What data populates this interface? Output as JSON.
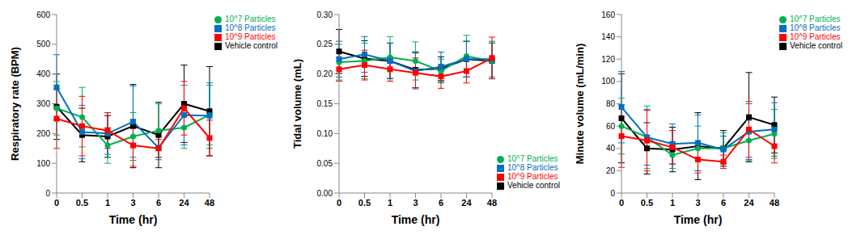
{
  "chart_data": [
    {
      "type": "line",
      "y_label": "Respiratory rate (BPM)",
      "x_label": "Time (hr)",
      "categories": [
        "0",
        "0.5",
        "1",
        "3",
        "6",
        "24",
        "48"
      ],
      "ylim": [
        0,
        600
      ],
      "yticks": [
        0,
        100,
        200,
        300,
        400,
        500,
        600
      ],
      "grid": false,
      "legend": "upper right",
      "series": [
        {
          "name": "Vehicle control",
          "color": "#000000",
          "marker": "square",
          "values": [
            290,
            195,
            190,
            225,
            195,
            300,
            275
          ],
          "errors": [
            110,
            90,
            70,
            140,
            110,
            130,
            150
          ]
        },
        {
          "name": "10^7 Particles",
          "color": "#00b050",
          "marker": "circle",
          "values": [
            285,
            255,
            160,
            190,
            210,
            220,
            262
          ],
          "errors": [
            90,
            100,
            60,
            80,
            90,
            70,
            100
          ]
        },
        {
          "name": "10^8 Particles",
          "color": "#0070c0",
          "marker": "square",
          "values": [
            355,
            205,
            200,
            240,
            152,
            262,
            260
          ],
          "errors": [
            110,
            90,
            70,
            120,
            40,
            100,
            110
          ]
        },
        {
          "name": "10^9 Particles",
          "color": "#ff0000",
          "marker": "square",
          "values": [
            250,
            225,
            210,
            160,
            150,
            285,
            185
          ],
          "errors": [
            100,
            100,
            60,
            70,
            30,
            90,
            60
          ]
        }
      ]
    },
    {
      "type": "line",
      "y_label": "Tidal volume (mL)",
      "x_label": "Time (hr)",
      "categories": [
        "0",
        "0.5",
        "1",
        "3",
        "6",
        "24",
        "48"
      ],
      "ylim": [
        0,
        0.3
      ],
      "yticks": [
        {
          "value": 0,
          "label": "0.00"
        },
        {
          "value": 0.05,
          "label": "0.05"
        },
        {
          "value": 0.1,
          "label": "0.10"
        },
        {
          "value": 0.15,
          "label": "0.15"
        },
        {
          "value": 0.2,
          "label": "0.20"
        },
        {
          "value": 0.25,
          "label": "0.25"
        },
        {
          "value": 0.3,
          "label": "0.30"
        }
      ],
      "grid": false,
      "legend": "lower right",
      "series": [
        {
          "name": "Vehicle control",
          "color": "#000000",
          "marker": "square",
          "values": [
            0.238,
            0.226,
            0.222,
            0.207,
            0.209,
            0.225,
            0.222
          ],
          "errors": [
            0.037,
            0.03,
            0.03,
            0.03,
            0.02,
            0.03,
            0.03
          ]
        },
        {
          "name": "10^7 Particles",
          "color": "#00b050",
          "marker": "circle",
          "values": [
            0.22,
            0.222,
            0.228,
            0.222,
            0.205,
            0.23,
            0.222
          ],
          "errors": [
            0.03,
            0.03,
            0.035,
            0.032,
            0.02,
            0.035,
            0.03
          ]
        },
        {
          "name": "10^8 Particles",
          "color": "#0070c0",
          "marker": "square",
          "values": [
            0.225,
            0.233,
            0.222,
            0.205,
            0.212,
            0.225,
            0.225
          ],
          "errors": [
            0.03,
            0.03,
            0.03,
            0.03,
            0.025,
            0.03,
            0.03
          ]
        },
        {
          "name": "10^9 Particles",
          "color": "#ff0000",
          "marker": "square",
          "values": [
            0.208,
            0.215,
            0.208,
            0.202,
            0.196,
            0.205,
            0.227
          ],
          "errors": [
            0.02,
            0.025,
            0.02,
            0.025,
            0.02,
            0.02,
            0.035
          ]
        }
      ]
    },
    {
      "type": "line",
      "y_label": "Minute volume (mL/min)",
      "x_label": "Time (hr)",
      "categories": [
        "0",
        "0.5",
        "1",
        "3",
        "6",
        "24",
        "48"
      ],
      "ylim": [
        0,
        160
      ],
      "yticks": [
        0,
        20,
        40,
        60,
        80,
        100,
        120,
        140,
        160
      ],
      "grid": false,
      "legend": "upper right",
      "series": [
        {
          "name": "Vehicle control",
          "color": "#000000",
          "marker": "square",
          "values": [
            67,
            40,
            39,
            42,
            40,
            68,
            61
          ],
          "errors": [
            40,
            23,
            20,
            30,
            16,
            40,
            25
          ]
        },
        {
          "name": "10^7 Particles",
          "color": "#00b050",
          "marker": "circle",
          "values": [
            60,
            50,
            34,
            40,
            40,
            47,
            53
          ],
          "errors": [
            25,
            28,
            12,
            20,
            14,
            18,
            22
          ]
        },
        {
          "name": "10^8 Particles",
          "color": "#0070c0",
          "marker": "square",
          "values": [
            77,
            50,
            44,
            45,
            39,
            55,
            57
          ],
          "errors": [
            32,
            25,
            18,
            25,
            12,
            25,
            24
          ]
        },
        {
          "name": "10^9 Particles",
          "color": "#ff0000",
          "marker": "square",
          "values": [
            51,
            47,
            41,
            30,
            28,
            57,
            42
          ],
          "errors": [
            28,
            27,
            15,
            12,
            6,
            25,
            15
          ]
        }
      ]
    }
  ]
}
